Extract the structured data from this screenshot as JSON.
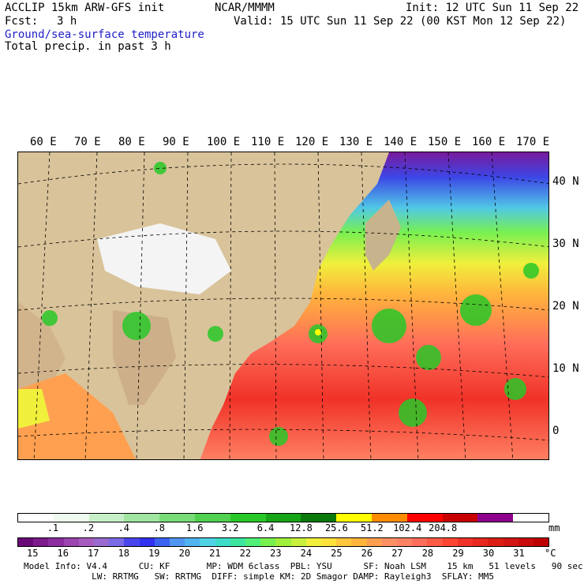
{
  "header": {
    "model_line": "ACCLIP 15km ARW-GFS init",
    "org": "NCAR/MMMM",
    "init": "Init: 12 UTC Sun 11 Sep 22",
    "fcst_label": "Fcst:",
    "fcst_value": "3 h",
    "valid": "Valid: 15 UTC Sun 11 Sep 22 (00 KST Mon 12 Sep 22)",
    "field1": "Ground/sea-surface temperature",
    "field2": "Total precip. in past 3 h"
  },
  "axes": {
    "lon_labels": [
      "60 E",
      "70 E",
      "80 E",
      "90 E",
      "100 E",
      "110 E",
      "120 E",
      "130 E",
      "140 E",
      "150 E",
      "160 E",
      "170 E"
    ],
    "lat_labels": [
      "40 N",
      "30 N",
      "20 N",
      "10 N",
      "0"
    ]
  },
  "precip_scale": {
    "unit": "mm",
    "ticks": [
      ".1",
      ".2",
      ".4",
      ".8",
      "1.6",
      "3.2",
      "6.4",
      "12.8",
      "25.6",
      "51.2",
      "102.4",
      "204.8"
    ],
    "colors": [
      "#ffffff",
      "#eefaee",
      "#c8f0c8",
      "#a0e6a0",
      "#78dc78",
      "#50d250",
      "#28c828",
      "#16a516",
      "#0a780a",
      "#ffff00",
      "#ff8c00",
      "#ff0000",
      "#c80000",
      "#8c008c",
      "#ffffff"
    ]
  },
  "temp_scale": {
    "unit": "°C",
    "ticks": [
      "15",
      "16",
      "17",
      "18",
      "19",
      "20",
      "21",
      "22",
      "23",
      "24",
      "25",
      "26",
      "27",
      "28",
      "29",
      "30",
      "31"
    ],
    "colors": [
      "#6a0a78",
      "#7d1a8c",
      "#8c2ea0",
      "#9c44b0",
      "#a85cc0",
      "#9a6ad0",
      "#7a6ae6",
      "#4a46ec",
      "#3232f0",
      "#3c64f0",
      "#5096f0",
      "#50b4f0",
      "#50d2e6",
      "#3cdcc8",
      "#3ce6a0",
      "#50f078",
      "#78f050",
      "#a0f03c",
      "#c8f03c",
      "#f0f03c",
      "#ffe13c",
      "#ffc83c",
      "#ffb43c",
      "#ffa050",
      "#ff9064",
      "#ff8264",
      "#ff6e5a",
      "#ff5a46",
      "#ff4632",
      "#f03228",
      "#e6281e",
      "#dc1e14",
      "#d21414",
      "#c80a0a",
      "#be0000"
    ]
  },
  "model_info": {
    "line1": "Model Info: V4.4      CU: KF       MP: WDM 6class  PBL: YSU      SF: Noah LSM    15 km   51 levels   90 sec",
    "line2": "             LW: RRTMG   SW: RRTMG  DIFF: simple KM: 2D Smagor DAMP: Rayleigh3  SFLAY: MM5"
  }
}
